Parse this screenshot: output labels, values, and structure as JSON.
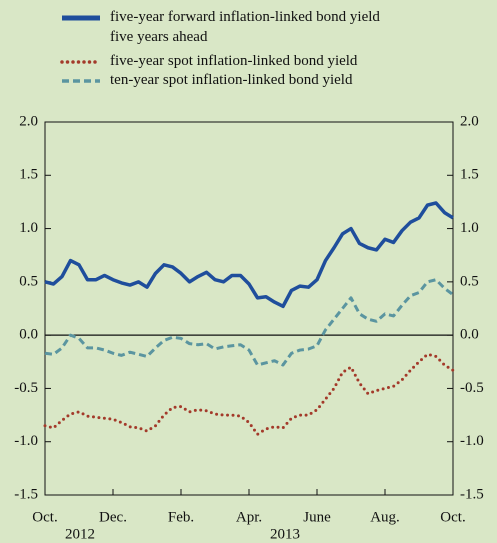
{
  "chart_data": {
    "type": "line",
    "x": [
      0,
      0.25,
      0.5,
      0.75,
      1,
      1.25,
      1.5,
      1.75,
      2,
      2.25,
      2.5,
      2.75,
      3,
      3.25,
      3.5,
      3.75,
      4,
      4.25,
      4.5,
      4.75,
      5,
      5.25,
      5.5,
      5.75,
      6,
      6.25,
      6.5,
      6.75,
      7,
      7.25,
      7.5,
      7.75,
      8,
      8.25,
      8.5,
      8.75,
      9,
      9.25,
      9.5,
      9.75,
      10,
      10.25,
      10.5,
      10.75,
      11,
      11.25,
      11.5,
      11.75,
      12
    ],
    "series": [
      {
        "name": "five-year forward inflation-linked bond yield\nfive years ahead",
        "color": "#1f4e9c",
        "style": "solid",
        "values": [
          0.5,
          0.48,
          0.55,
          0.7,
          0.66,
          0.52,
          0.52,
          0.56,
          0.52,
          0.49,
          0.47,
          0.5,
          0.45,
          0.58,
          0.66,
          0.64,
          0.58,
          0.5,
          0.55,
          0.59,
          0.52,
          0.5,
          0.56,
          0.56,
          0.48,
          0.35,
          0.36,
          0.31,
          0.27,
          0.42,
          0.46,
          0.45,
          0.52,
          0.7,
          0.82,
          0.95,
          1.0,
          0.86,
          0.82,
          0.8,
          0.9,
          0.87,
          0.98,
          1.06,
          1.1,
          1.22,
          1.24,
          1.15,
          1.1
        ]
      },
      {
        "name": "five-year spot inflation-linked bond yield",
        "color": "#a33a2a",
        "style": "dotted",
        "values": [
          -0.85,
          -0.87,
          -0.8,
          -0.74,
          -0.72,
          -0.76,
          -0.77,
          -0.78,
          -0.79,
          -0.82,
          -0.86,
          -0.87,
          -0.9,
          -0.85,
          -0.75,
          -0.68,
          -0.67,
          -0.72,
          -0.7,
          -0.71,
          -0.74,
          -0.75,
          -0.75,
          -0.76,
          -0.82,
          -0.93,
          -0.88,
          -0.86,
          -0.87,
          -0.78,
          -0.75,
          -0.75,
          -0.7,
          -0.6,
          -0.5,
          -0.35,
          -0.3,
          -0.45,
          -0.55,
          -0.52,
          -0.5,
          -0.48,
          -0.42,
          -0.33,
          -0.25,
          -0.18,
          -0.2,
          -0.28,
          -0.33
        ]
      },
      {
        "name": "ten-year spot inflation-linked bond yield",
        "color": "#5b95a0",
        "style": "dashed",
        "values": [
          -0.17,
          -0.18,
          -0.12,
          0.0,
          -0.03,
          -0.12,
          -0.12,
          -0.14,
          -0.17,
          -0.19,
          -0.16,
          -0.18,
          -0.2,
          -0.12,
          -0.05,
          -0.02,
          -0.03,
          -0.08,
          -0.09,
          -0.08,
          -0.13,
          -0.11,
          -0.1,
          -0.09,
          -0.14,
          -0.28,
          -0.26,
          -0.24,
          -0.28,
          -0.17,
          -0.14,
          -0.13,
          -0.1,
          0.05,
          0.15,
          0.25,
          0.35,
          0.2,
          0.15,
          0.13,
          0.2,
          0.18,
          0.28,
          0.37,
          0.4,
          0.5,
          0.52,
          0.44,
          0.38
        ]
      }
    ],
    "xlim": [
      0,
      12
    ],
    "xticks": [
      {
        "value": 0,
        "label": "Oct."
      },
      {
        "value": 2,
        "label": "Dec."
      },
      {
        "value": 4,
        "label": "Feb."
      },
      {
        "value": 6,
        "label": "Apr."
      },
      {
        "value": 8,
        "label": "June"
      },
      {
        "value": 10,
        "label": "Aug."
      },
      {
        "value": 12,
        "label": "Oct."
      }
    ],
    "year_labels": [
      {
        "value": 1.03,
        "label": "2012"
      },
      {
        "value": 7.06,
        "label": "2013"
      }
    ],
    "ylim": [
      -1.5,
      2.0
    ],
    "yticks": [
      {
        "value": -1.5,
        "label": "-1.5"
      },
      {
        "value": -1.0,
        "label": "-1.0"
      },
      {
        "value": -0.5,
        "label": "-0.5"
      },
      {
        "value": 0.0,
        "label": "0.0"
      },
      {
        "value": 0.5,
        "label": "0.5"
      },
      {
        "value": 1.0,
        "label": "1.0"
      },
      {
        "value": 1.5,
        "label": "1.5"
      },
      {
        "value": 2.0,
        "label": "2.0"
      }
    ],
    "y2lim": [
      -1.5,
      2.0
    ],
    "y2ticks": [
      {
        "value": -1.5,
        "label": "-1.5"
      },
      {
        "value": -1.0,
        "label": "-1.0"
      },
      {
        "value": -0.5,
        "label": "-0.5"
      },
      {
        "value": 0.0,
        "label": "0.0"
      },
      {
        "value": 0.5,
        "label": "0.5"
      },
      {
        "value": 1.0,
        "label": "1.0"
      },
      {
        "value": 1.5,
        "label": "1.5"
      },
      {
        "value": 2.0,
        "label": "2.0"
      }
    ],
    "zero_line": true
  }
}
